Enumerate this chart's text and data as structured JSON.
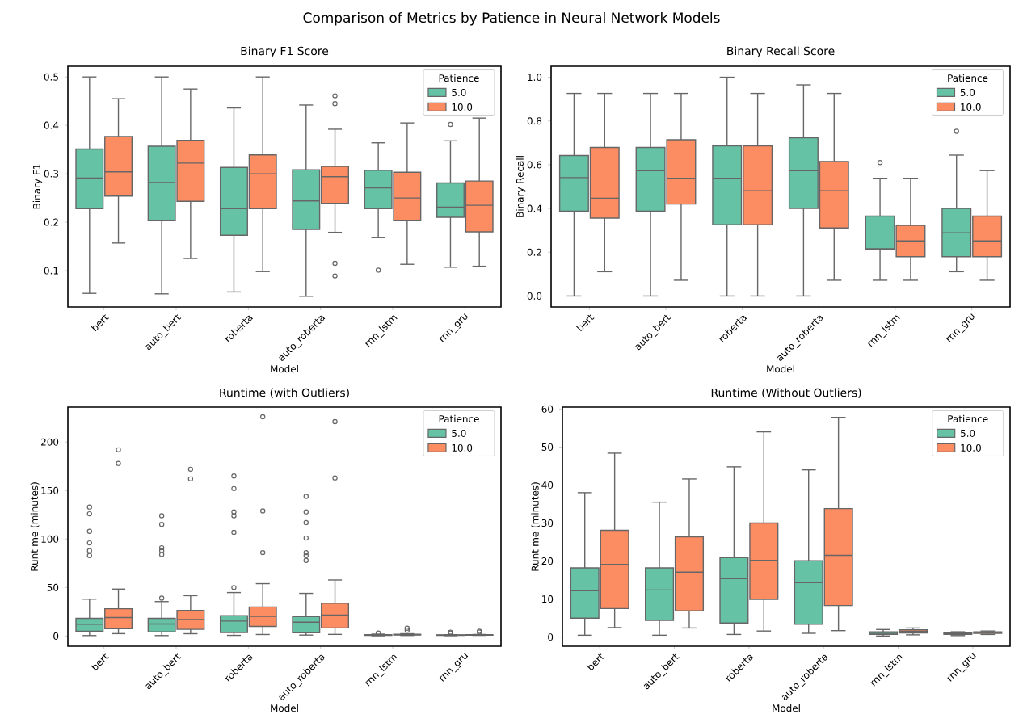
{
  "chart_data": [
    {
      "type": "box",
      "title": "Comparison of Metrics by Patience in Neural Network Models",
      "subtitle": "Binary F1 Score",
      "xlabel": "Model",
      "ylabel": "Binary F1",
      "legend_title": "Patience",
      "legend": "top right",
      "categories": [
        "bert",
        "auto_bert",
        "roberta",
        "auto_roberta",
        "rnn_lstm",
        "rnn_gru"
      ],
      "ylim": [
        0.025,
        0.522
      ],
      "yticks": [
        0.1,
        0.2,
        0.3,
        0.4,
        0.5
      ],
      "series": [
        {
          "name": "5.0",
          "color": "#66c2a5",
          "boxes": [
            {
              "low": 0.053,
              "q1": 0.228,
              "median": 0.291,
              "q3": 0.351,
              "high": 0.5
            },
            {
              "low": 0.052,
              "q1": 0.204,
              "median": 0.282,
              "q3": 0.357,
              "high": 0.5
            },
            {
              "low": 0.056,
              "q1": 0.173,
              "median": 0.228,
              "q3": 0.313,
              "high": 0.436
            },
            {
              "low": 0.047,
              "q1": 0.185,
              "median": 0.244,
              "q3": 0.308,
              "high": 0.442
            },
            {
              "low": 0.168,
              "q1": 0.228,
              "median": 0.271,
              "q3": 0.307,
              "high": 0.364,
              "outliers": [
                0.101
              ]
            },
            {
              "low": 0.107,
              "q1": 0.21,
              "median": 0.231,
              "q3": 0.281,
              "high": 0.368,
              "outliers": [
                0.402
              ]
            }
          ]
        },
        {
          "name": "10.0",
          "color": "#fc8d62",
          "boxes": [
            {
              "low": 0.157,
              "q1": 0.254,
              "median": 0.304,
              "q3": 0.377,
              "high": 0.455
            },
            {
              "low": 0.125,
              "q1": 0.243,
              "median": 0.322,
              "q3": 0.369,
              "high": 0.475
            },
            {
              "low": 0.098,
              "q1": 0.228,
              "median": 0.3,
              "q3": 0.339,
              "high": 0.5
            },
            {
              "low": 0.179,
              "q1": 0.239,
              "median": 0.294,
              "q3": 0.315,
              "high": 0.392,
              "outliers": [
                0.461,
                0.445,
                0.115,
                0.089
              ]
            },
            {
              "low": 0.113,
              "q1": 0.204,
              "median": 0.25,
              "q3": 0.303,
              "high": 0.405
            },
            {
              "low": 0.109,
              "q1": 0.18,
              "median": 0.235,
              "q3": 0.285,
              "high": 0.415
            }
          ]
        }
      ]
    },
    {
      "type": "box",
      "title": "Binary Recall Score",
      "xlabel": "Model",
      "ylabel": "Binary Recall",
      "legend_title": "Patience",
      "legend": "top right",
      "categories": [
        "bert",
        "auto_bert",
        "roberta",
        "auto_roberta",
        "rnn_lstm",
        "rnn_gru"
      ],
      "ylim": [
        -0.05,
        1.05
      ],
      "yticks": [
        {
          "value": 0,
          "label": "0.0"
        },
        {
          "value": 0.2,
          "label": "0.2"
        },
        {
          "value": 0.4,
          "label": "0.4"
        },
        {
          "value": 0.6,
          "label": "0.6"
        },
        {
          "value": 0.8,
          "label": "0.8"
        },
        {
          "value": 1,
          "label": "1.0"
        }
      ],
      "series": [
        {
          "name": "5.0",
          "color": "#66c2a5",
          "boxes": [
            {
              "low": 0,
              "q1": 0.388,
              "median": 0.541,
              "q3": 0.642,
              "high": 0.926
            },
            {
              "low": 0,
              "q1": 0.388,
              "median": 0.573,
              "q3": 0.679,
              "high": 0.926
            },
            {
              "low": 0,
              "q1": 0.326,
              "median": 0.538,
              "q3": 0.686,
              "high": 1.0
            },
            {
              "low": 0,
              "q1": 0.4,
              "median": 0.573,
              "q3": 0.723,
              "high": 0.965
            },
            {
              "low": 0.072,
              "q1": 0.215,
              "median": 0.215,
              "q3": 0.365,
              "high": 0.538,
              "outliers": [
                0.61
              ]
            },
            {
              "low": 0.111,
              "q1": 0.18,
              "median": 0.289,
              "q3": 0.4,
              "high": 0.644,
              "outliers": [
                0.753
              ]
            }
          ]
        },
        {
          "name": "10.0",
          "color": "#fc8d62",
          "boxes": [
            {
              "low": 0.111,
              "q1": 0.356,
              "median": 0.447,
              "q3": 0.679,
              "high": 0.926
            },
            {
              "low": 0.072,
              "q1": 0.42,
              "median": 0.538,
              "q3": 0.714,
              "high": 0.926
            },
            {
              "low": 0,
              "q1": 0.326,
              "median": 0.481,
              "q3": 0.686,
              "high": 0.926
            },
            {
              "low": 0.072,
              "q1": 0.311,
              "median": 0.481,
              "q3": 0.615,
              "high": 0.926
            },
            {
              "low": 0.072,
              "q1": 0.18,
              "median": 0.252,
              "q3": 0.323,
              "high": 0.538
            },
            {
              "low": 0.072,
              "q1": 0.18,
              "median": 0.252,
              "q3": 0.365,
              "high": 0.573
            }
          ]
        }
      ]
    },
    {
      "type": "box",
      "title": "Runtime (with Outliers)",
      "xlabel": "Model",
      "ylabel": "Runtime (minutes)",
      "legend_title": "Patience",
      "legend": "top right",
      "categories": [
        "bert",
        "auto_bert",
        "roberta",
        "auto_roberta",
        "rnn_lstm",
        "rnn_gru"
      ],
      "ylim": [
        -10.5,
        236
      ],
      "yticks": [
        0,
        50,
        100,
        150,
        200
      ],
      "series": [
        {
          "name": "5.0",
          "color": "#66c2a5",
          "boxes": [
            {
              "low": 0.5,
              "q1": 5,
              "median": 12.2,
              "q3": 18.2,
              "high": 38,
              "outliers": [
                133,
                126,
                108,
                96,
                88,
                83
              ]
            },
            {
              "low": 0.5,
              "q1": 4.4,
              "median": 12.4,
              "q3": 18.2,
              "high": 35.5,
              "outliers": [
                124,
                115,
                91,
                88,
                84,
                39
              ]
            },
            {
              "low": 0.7,
              "q1": 3.7,
              "median": 15.4,
              "q3": 20.9,
              "high": 44.8,
              "outliers": [
                165,
                152,
                128,
                124,
                107,
                50
              ]
            },
            {
              "low": 1,
              "q1": 3.4,
              "median": 14.3,
              "q3": 20.1,
              "high": 44,
              "outliers": [
                144,
                128,
                117,
                101,
                86,
                83,
                78
              ]
            },
            {
              "low": 0.3,
              "q1": 0.7,
              "median": 1,
              "q3": 1.4,
              "high": 2,
              "outliers": [
                3
              ]
            },
            {
              "low": 0.4,
              "q1": 0.7,
              "median": 0.9,
              "q3": 1.1,
              "high": 1.4,
              "outliers": [
                3,
                4
              ]
            }
          ]
        },
        {
          "name": "10.0",
          "color": "#fc8d62",
          "boxes": [
            {
              "low": 2.5,
              "q1": 7.5,
              "median": 19.1,
              "q3": 28.1,
              "high": 48.4,
              "outliers": [
                192,
                178
              ]
            },
            {
              "low": 2.4,
              "q1": 6.9,
              "median": 17.1,
              "q3": 26.4,
              "high": 41.6,
              "outliers": [
                172,
                162
              ]
            },
            {
              "low": 1.6,
              "q1": 9.9,
              "median": 20.2,
              "q3": 30,
              "high": 54,
              "outliers": [
                226,
                129,
                86
              ]
            },
            {
              "low": 1.7,
              "q1": 8.3,
              "median": 21.5,
              "q3": 33.8,
              "high": 57.8,
              "outliers": [
                221,
                163
              ]
            },
            {
              "low": 0.6,
              "q1": 1.1,
              "median": 1.5,
              "q3": 1.9,
              "high": 2.4,
              "outliers": [
                6,
                8
              ]
            },
            {
              "low": 0.7,
              "q1": 1,
              "median": 1.2,
              "q3": 1.4,
              "high": 1.6,
              "outliers": [
                4,
                5
              ]
            }
          ]
        }
      ]
    },
    {
      "type": "box",
      "title": "Runtime (Without Outliers)",
      "xlabel": "Model",
      "ylabel": "Runtime (minutes)",
      "legend_title": "Patience",
      "legend": "top right",
      "categories": [
        "bert",
        "auto_bert",
        "roberta",
        "auto_roberta",
        "rnn_lstm",
        "rnn_gru"
      ],
      "ylim": [
        -2.4,
        60.5
      ],
      "yticks": [
        0,
        10,
        20,
        30,
        40,
        50,
        60
      ],
      "series": [
        {
          "name": "5.0",
          "color": "#66c2a5",
          "boxes": [
            {
              "low": 0.5,
              "q1": 5,
              "median": 12.2,
              "q3": 18.2,
              "high": 38
            },
            {
              "low": 0.5,
              "q1": 4.4,
              "median": 12.4,
              "q3": 18.2,
              "high": 35.5
            },
            {
              "low": 0.7,
              "q1": 3.7,
              "median": 15.4,
              "q3": 20.9,
              "high": 44.8
            },
            {
              "low": 1,
              "q1": 3.4,
              "median": 14.3,
              "q3": 20.1,
              "high": 44
            },
            {
              "low": 0.3,
              "q1": 0.7,
              "median": 1,
              "q3": 1.4,
              "high": 2
            },
            {
              "low": 0.4,
              "q1": 0.7,
              "median": 0.9,
              "q3": 1.1,
              "high": 1.4
            }
          ]
        },
        {
          "name": "10.0",
          "color": "#fc8d62",
          "boxes": [
            {
              "low": 2.5,
              "q1": 7.5,
              "median": 19.1,
              "q3": 28.1,
              "high": 48.4
            },
            {
              "low": 2.4,
              "q1": 6.9,
              "median": 17.1,
              "q3": 26.4,
              "high": 41.6
            },
            {
              "low": 1.6,
              "q1": 9.9,
              "median": 20.2,
              "q3": 30,
              "high": 54
            },
            {
              "low": 1.7,
              "q1": 8.3,
              "median": 21.5,
              "q3": 33.8,
              "high": 57.8
            },
            {
              "low": 0.6,
              "q1": 1.1,
              "median": 1.5,
              "q3": 1.9,
              "high": 2.4
            },
            {
              "low": 0.7,
              "q1": 1,
              "median": 1.2,
              "q3": 1.4,
              "high": 1.6
            }
          ]
        }
      ]
    }
  ]
}
